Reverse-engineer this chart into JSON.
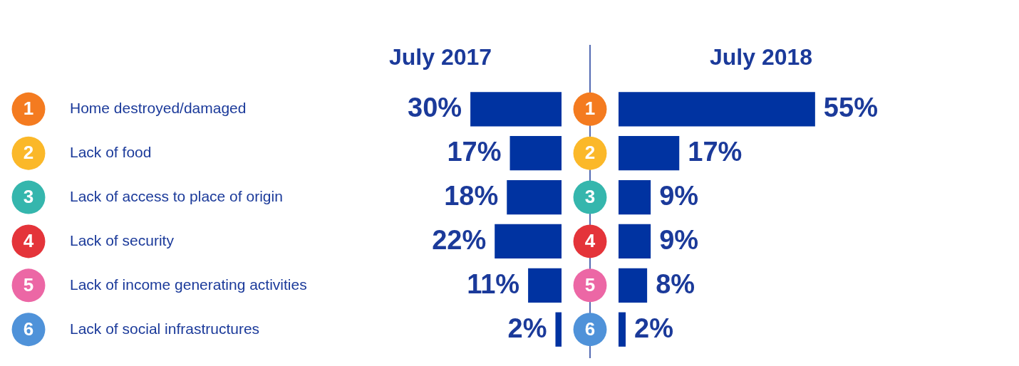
{
  "chart_data": [
    {
      "type": "bar",
      "orientation": "horizontal",
      "title": "July 2017",
      "categories": [
        "1",
        "2",
        "3",
        "4",
        "5",
        "6"
      ],
      "colors": [
        "#f47b20",
        "#fbb829",
        "#35b6ad",
        "#e4343a",
        "#ec67a5",
        "#4f92d9"
      ],
      "annotations": [
        "Home destroyed/damaged",
        "Lack of food",
        "Lack of access to place of origin",
        "Lack of security",
        "Lack of income generating activities",
        "Lack of social infrastructures"
      ],
      "series": [
        {
          "color": "#0033a1",
          "values": [
            30,
            17,
            18,
            22,
            11,
            2
          ],
          "value_labels": [
            "30%",
            "17%",
            "18%",
            "22%",
            "11%",
            "2%"
          ]
        }
      ]
    },
    {
      "type": "bar",
      "orientation": "horizontal",
      "title": "July 2018",
      "categories": [
        "1",
        "2",
        "3",
        "4",
        "5",
        "6"
      ],
      "colors": [
        "#f47b20",
        "#fbb829",
        "#35b6ad",
        "#e4343a",
        "#ec67a5",
        "#4f92d9"
      ],
      "series": [
        {
          "color": "#0033a1",
          "values": [
            55,
            17,
            9,
            9,
            8,
            2
          ],
          "value_labels": [
            "55%",
            "17%",
            "9%",
            "9%",
            "8%",
            "2%"
          ]
        }
      ]
    }
  ]
}
